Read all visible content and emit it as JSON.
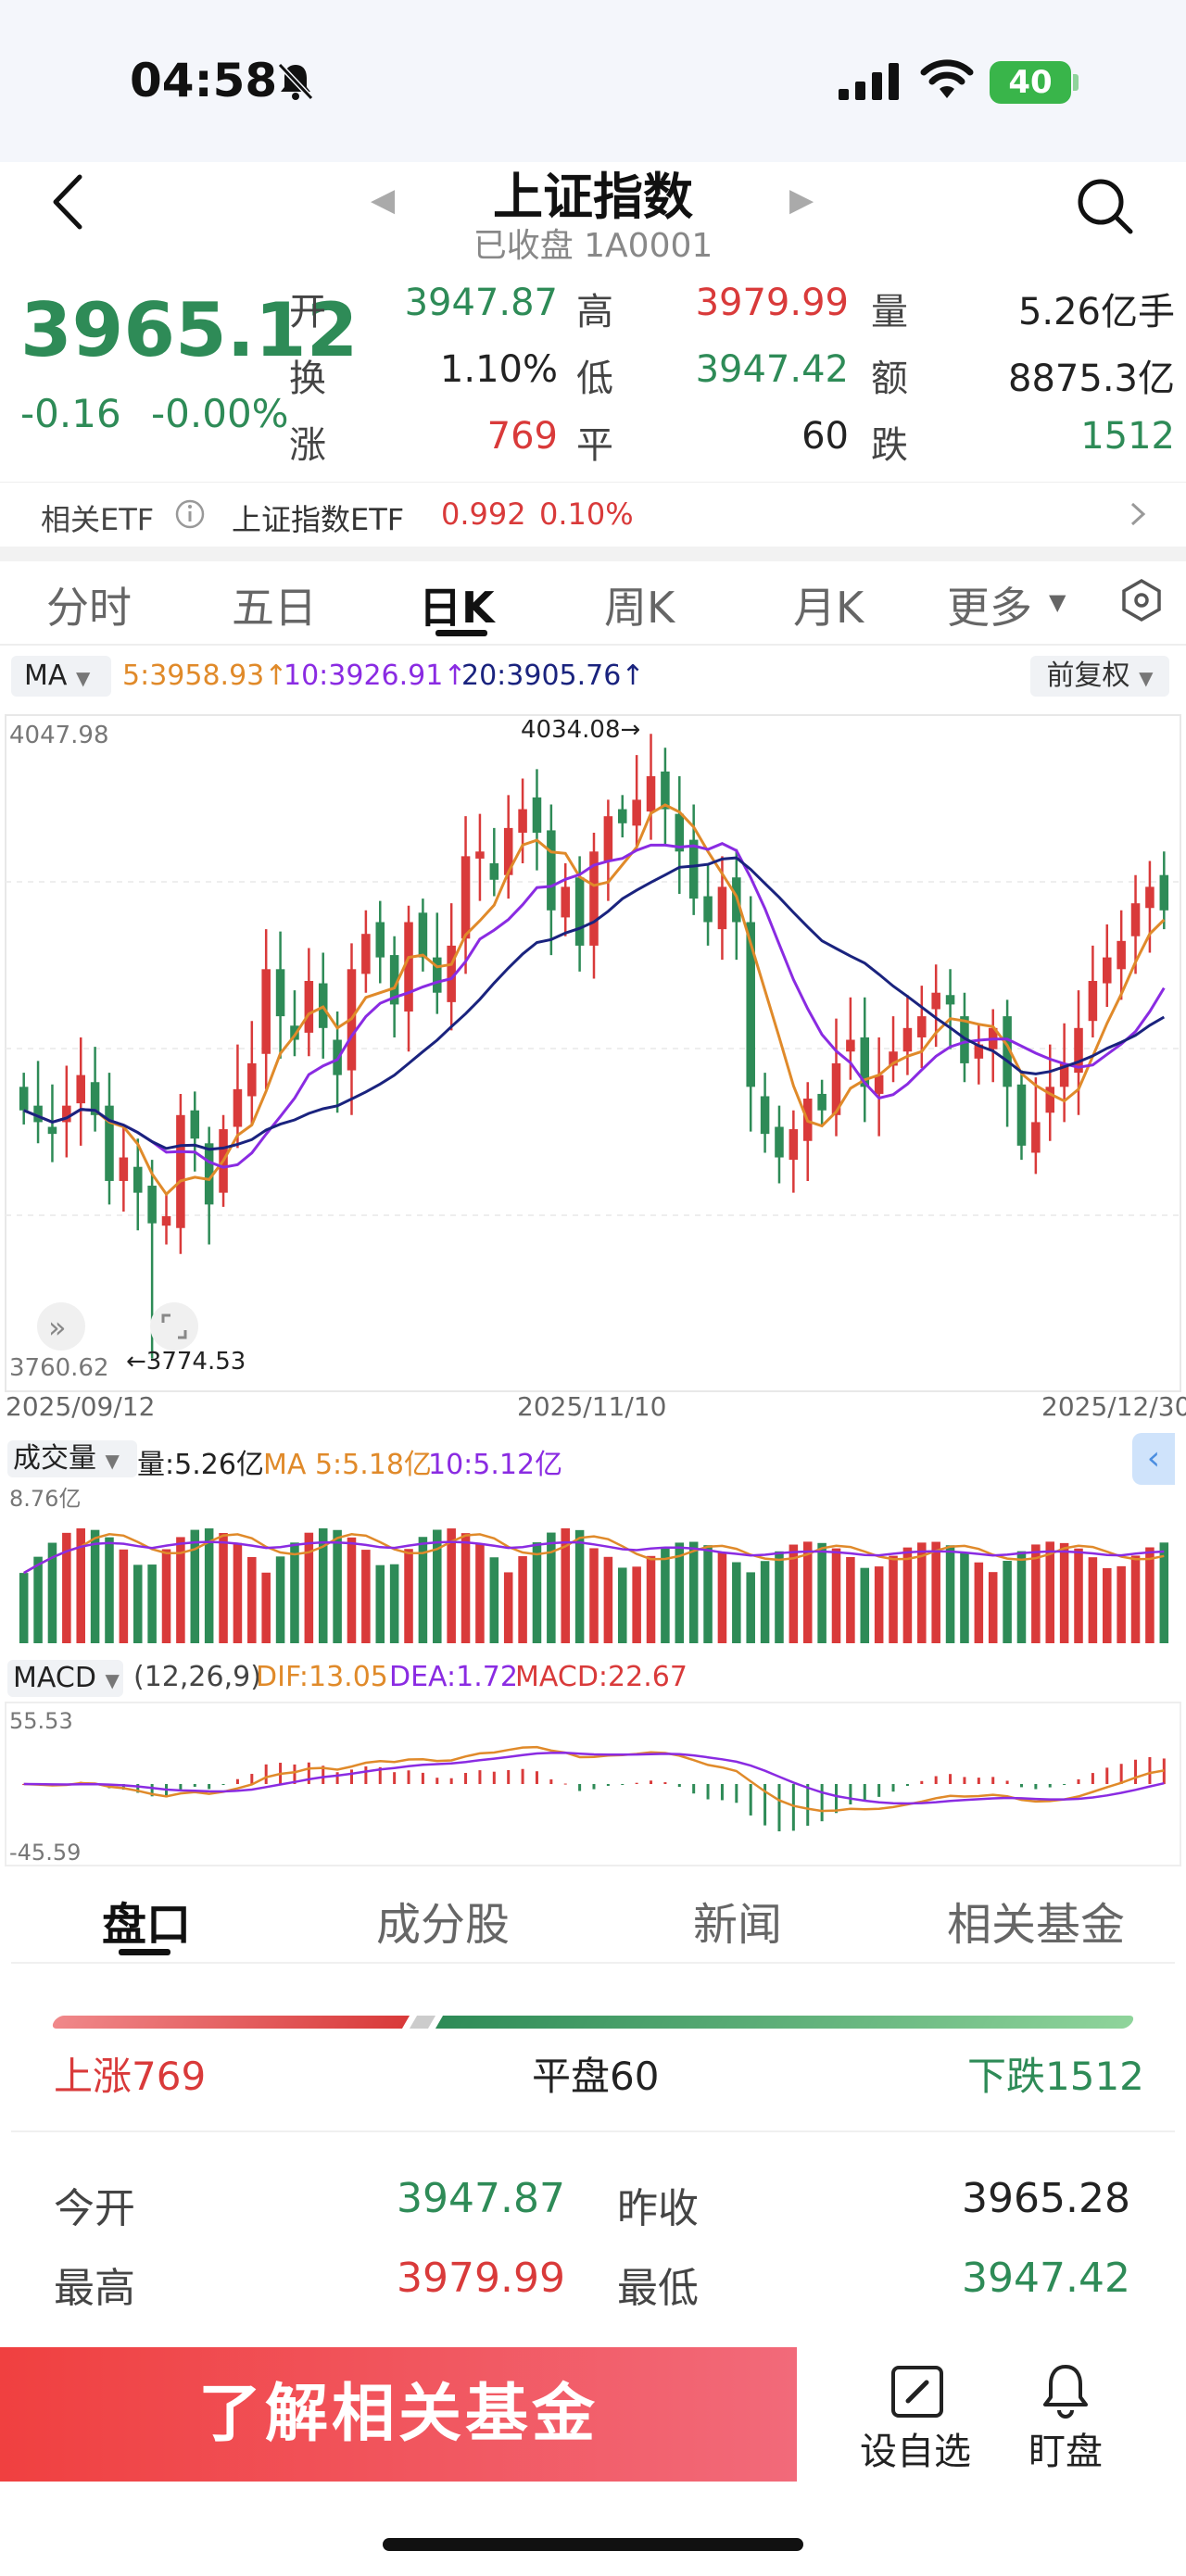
{
  "status_bar": {
    "time": "04:58",
    "battery": "40",
    "icons": [
      "bell-muted-icon",
      "signal-icon",
      "wifi-icon",
      "battery-icon"
    ]
  },
  "header": {
    "title": "上证指数",
    "subtitle": "已收盘 1A0001"
  },
  "quote": {
    "price": "3965.12",
    "change": "-0.16",
    "change_pct": "-0.00%",
    "open_label": "开",
    "open": "3947.87",
    "high_label": "高",
    "high": "3979.99",
    "volume_label": "量",
    "volume": "5.26亿手",
    "turnover_label": "换",
    "turnover": "1.10%",
    "low_label": "低",
    "low": "3947.42",
    "amount_label": "额",
    "amount": "8875.3亿",
    "up_label": "涨",
    "up_count": "769",
    "flat_label": "平",
    "flat_count": "60",
    "down_label": "跌",
    "down_count": "1512"
  },
  "etf": {
    "label": "相关ETF",
    "name": "上证指数ETF",
    "price": "0.992",
    "pct": "0.10%"
  },
  "kline_tabs": [
    "分时",
    "五日",
    "日K",
    "周K",
    "月K",
    "更多"
  ],
  "ma_row": {
    "type": "MA",
    "ma5": "5:3958.93",
    "ma10": "10:3926.91",
    "ma20": "20:3905.76",
    "adjust": "前复权"
  },
  "chart_labels": {
    "y_max": "4047.98",
    "y_min": "3760.62",
    "high_mark": "4034.08",
    "low_mark": "3774.53",
    "date_start": "2025/09/12",
    "date_mid": "2025/11/10",
    "date_end": "2025/12/30"
  },
  "volume_row": {
    "type": "成交量",
    "vol": "量:5.26亿",
    "ma5": "MA 5:5.18亿",
    "ma10": "10:5.12亿",
    "y_max": "8.76亿"
  },
  "macd_row": {
    "type": "MACD",
    "params": "(12,26,9)",
    "dif": "DIF:13.05",
    "dea": "DEA:1.72",
    "macd": "MACD:22.67",
    "y_max": "55.53",
    "y_min": "-45.59"
  },
  "colors": {
    "up": "#d93a3a",
    "down": "#2e8b57",
    "ma5": "#e08a2a",
    "ma10": "#8a2be2",
    "ma20": "#1a237e"
  },
  "bottom_tabs": [
    "盘口",
    "成分股",
    "新闻",
    "相关基金"
  ],
  "breadth": {
    "up": "上涨769",
    "flat": "平盘60",
    "down": "下跌1512"
  },
  "stats": {
    "open_label": "今开",
    "open": "3947.87",
    "prev_close_label": "昨收",
    "prev_close": "3965.28",
    "high_label": "最高",
    "high": "3979.99",
    "low_label": "最低",
    "low": "3947.42"
  },
  "bottom_bar": {
    "cta": "了解相关基金",
    "watch": "设自选",
    "monitor": "盯盘"
  },
  "chart_data": {
    "type": "candlestick",
    "x_range": [
      "2025/09/12",
      "2025/12/30"
    ],
    "ylim": [
      3760.62,
      4047.98
    ],
    "high": 4034.08,
    "low": 3774.53,
    "close_series": [
      3880,
      3875,
      3870,
      3882,
      3895,
      3878,
      3850,
      3860,
      3845,
      3832,
      3835,
      3878,
      3868,
      3840,
      3872,
      3889,
      3900,
      3940,
      3920,
      3910,
      3935,
      3915,
      3895,
      3940,
      3955,
      3945,
      3925,
      3960,
      3945,
      3930,
      3950,
      3988,
      3990,
      3978,
      4000,
      4008,
      3998,
      3965,
      3975,
      3950,
      3990,
      4005,
      4002,
      4012,
      4022,
      4008,
      3990,
      3970,
      3960,
      3975,
      3960,
      3890,
      3870,
      3860,
      3872,
      3885,
      3880,
      3900,
      3910,
      3890,
      3895,
      3905,
      3915,
      3920,
      3930,
      3925,
      3900,
      3908,
      3915,
      3890,
      3865,
      3875,
      3890,
      3900,
      3915,
      3935,
      3945,
      3952,
      3968,
      3975,
      3965
    ]
  }
}
